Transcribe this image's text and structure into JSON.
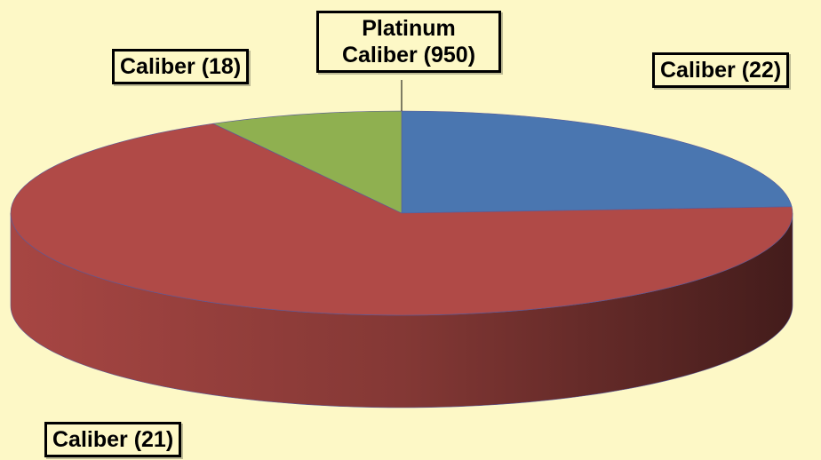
{
  "chart_data": {
    "type": "pie",
    "categories": [
      "Platinum Caliber (950)",
      "Caliber (22)",
      "Caliber (21)",
      "Caliber (18)"
    ],
    "values": [
      0,
      24,
      68,
      8
    ],
    "colors": [
      "#7f7fbf",
      "#4a76b0",
      "#b04a47",
      "#8fb050"
    ]
  }
}
